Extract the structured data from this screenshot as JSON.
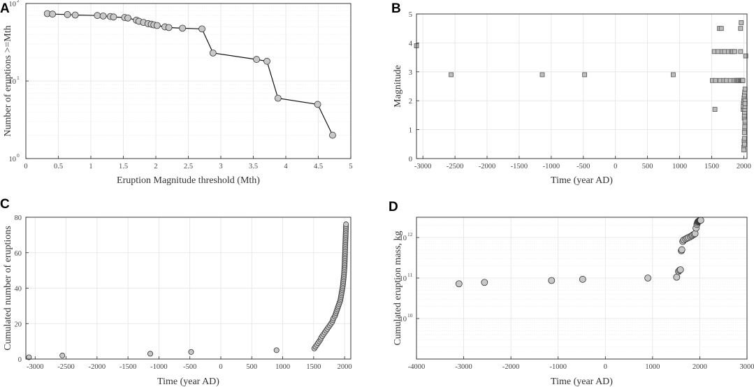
{
  "chart_data": [
    {
      "panel": "A",
      "type": "line",
      "scale_y": "log",
      "title": "",
      "xlabel": "Eruption Magnitude threshold (Mth)",
      "ylabel": "Number of eruptions >=Mth",
      "xlim": [
        0,
        5
      ],
      "ylim_exp": [
        0,
        2
      ],
      "xticks": [
        "0",
        "0.5",
        "1",
        "1.5",
        "2",
        "2.5",
        "3",
        "3.5",
        "4",
        "4.5",
        "5"
      ],
      "yticks": [
        {
          "base": "10",
          "exp": "0"
        },
        {
          "base": "10",
          "exp": "1"
        },
        {
          "base": "10",
          "exp": "2"
        }
      ],
      "grid": true,
      "marker": "circle",
      "x": [
        0.33,
        0.41,
        0.64,
        0.76,
        1.1,
        1.19,
        1.3,
        1.35,
        1.52,
        1.57,
        1.7,
        1.74,
        1.81,
        1.88,
        1.93,
        1.97,
        2.02,
        2.14,
        2.2,
        2.41,
        2.71,
        2.88,
        3.55,
        3.71,
        3.88,
        4.49,
        4.72
      ],
      "y": [
        74,
        73,
        72,
        71,
        70,
        69,
        68,
        67,
        66,
        65,
        61,
        59,
        57,
        55,
        54,
        53,
        52,
        50,
        49,
        48,
        47,
        23,
        19,
        18,
        6,
        5,
        2
      ]
    },
    {
      "panel": "B",
      "type": "scatter",
      "title": "",
      "xlabel": "Time (year AD)",
      "ylabel": "Magnitude",
      "xlim": [
        -3100,
        2050
      ],
      "ylim": [
        0,
        5
      ],
      "xticks": [
        "-3000",
        "-2500",
        "-2000",
        "-1500",
        "-1000",
        "-500",
        "0",
        "500",
        "1000",
        "1500",
        "2000"
      ],
      "yticks": [
        "0",
        "1",
        "2",
        "3",
        "4",
        "5"
      ],
      "grid": true,
      "marker": "square",
      "x": [
        -3100,
        -2560,
        -1140,
        -480,
        900,
        1510,
        1550,
        1540,
        1560,
        1600,
        1630,
        1660,
        1690,
        1700,
        1730,
        1760,
        1790,
        1810,
        1830,
        1850,
        1860,
        1880,
        1900,
        1915,
        1930,
        1945,
        1950,
        1960,
        1965,
        1975,
        1980,
        1985,
        1990,
        1995,
        2000,
        2005,
        2010,
        2015,
        2020,
        2000,
        2005,
        2010,
        2012,
        2015,
        2018,
        1992,
        2008,
        2010,
        2013,
        2016,
        2019,
        2020,
        2000,
        2010,
        2015,
        2018,
        2020,
        1620,
        1650,
        1950,
        1960,
        2030
      ],
      "y": [
        3.9,
        2.9,
        2.9,
        2.9,
        2.9,
        2.7,
        1.7,
        3.7,
        2.7,
        3.7,
        2.7,
        3.7,
        2.7,
        3.7,
        2.7,
        3.7,
        2.7,
        3.7,
        3.7,
        2.7,
        3.7,
        2.7,
        2.7,
        2.7,
        2.7,
        2.7,
        3.7,
        2.7,
        2.7,
        2.7,
        2.7,
        2.7,
        1.7,
        1.9,
        2.0,
        2.1,
        2.2,
        2.3,
        2.4,
        0.4,
        0.6,
        0.7,
        0.5,
        1.0,
        1.2,
        1.8,
        1.4,
        1.5,
        1.6,
        1.7,
        1.8,
        2.0,
        0.3,
        0.9,
        1.1,
        1.3,
        1.9,
        4.5,
        4.5,
        4.5,
        4.7,
        3.55
      ]
    },
    {
      "panel": "C",
      "type": "scatter",
      "title": "",
      "xlabel": "Time (year AD)",
      "ylabel": "Cumulated number of eruptions",
      "xlim": [
        -3150,
        2100
      ],
      "ylim": [
        0,
        80
      ],
      "xticks": [
        "-3000",
        "-2500",
        "-2000",
        "-1500",
        "-1000",
        "-500",
        "0",
        "500",
        "1000",
        "1500",
        "2000"
      ],
      "yticks": [
        "0",
        "20",
        "40",
        "60",
        "80"
      ],
      "grid": true,
      "marker": "circle",
      "x": [
        -3100,
        -2560,
        -1140,
        -480,
        900,
        1510,
        1530,
        1550,
        1570,
        1590,
        1610,
        1620,
        1640,
        1660,
        1680,
        1700,
        1720,
        1740,
        1760,
        1780,
        1800,
        1810,
        1820,
        1840,
        1850,
        1860,
        1870,
        1880,
        1890,
        1900,
        1910,
        1920,
        1930,
        1935,
        1940,
        1945,
        1950,
        1955,
        1960,
        1965,
        1970,
        1973,
        1976,
        1979,
        1982,
        1985,
        1988,
        1990,
        1992,
        1994,
        1996,
        1998,
        2000,
        2001,
        2002,
        2003,
        2004,
        2005,
        2006,
        2007,
        2008,
        2009,
        2010,
        2011,
        2012,
        2013,
        2014,
        2015,
        2016,
        2017,
        2018,
        2019,
        2020,
        2021,
        2022,
        2023
      ],
      "y": [
        1,
        2,
        3,
        4,
        5,
        6,
        7,
        8,
        9,
        10,
        11,
        12,
        13,
        14,
        15,
        16,
        17,
        18,
        19,
        20,
        21,
        22,
        23,
        24,
        25,
        26,
        27,
        28,
        29,
        30,
        31,
        32,
        33,
        34,
        35,
        36,
        37,
        38,
        39,
        40,
        41,
        42,
        43,
        44,
        45,
        46,
        47,
        48,
        49,
        50,
        51,
        52,
        53,
        54,
        55,
        56,
        57,
        58,
        59,
        60,
        61,
        62,
        63,
        64,
        65,
        66,
        67,
        68,
        69,
        70,
        71,
        72,
        73,
        74,
        75,
        76
      ]
    },
    {
      "panel": "D",
      "type": "scatter",
      "scale_y": "log",
      "title": "",
      "xlabel": "Time (year AD)",
      "ylabel": "Cumulated eruption mass, kg",
      "xlim": [
        -4000,
        3000
      ],
      "ylim_exp": [
        9.0,
        12.5
      ],
      "xticks": [
        "-4000",
        "-3000",
        "-2000",
        "-1000",
        "0",
        "1000",
        "2000",
        "3000"
      ],
      "yticks": [
        {
          "base": "10",
          "exp": "10"
        },
        {
          "base": "10",
          "exp": "11"
        },
        {
          "base": "10",
          "exp": "12"
        }
      ],
      "grid": true,
      "marker": "circle",
      "x": [
        -3100,
        -2560,
        -1140,
        -480,
        900,
        1510,
        1550,
        1570,
        1590,
        1610,
        1620,
        1640,
        1660,
        1700,
        1730,
        1760,
        1800,
        1830,
        1850,
        1880,
        1900,
        1920,
        1940,
        1950,
        1960,
        1970,
        1980,
        1990,
        2000,
        2010,
        2020
      ],
      "y": [
        72000000000.0,
        78000000000.0,
        87000000000.0,
        93000000000.0,
        100000000000.0,
        105000000000.0,
        145000000000.0,
        155000000000.0,
        160000000000.0,
        470000000000.0,
        500000000000.0,
        800000000000.0,
        870000000000.0,
        920000000000.0,
        960000000000.0,
        1000000000000.0,
        1050000000000.0,
        1100000000000.0,
        1150000000000.0,
        1200000000000.0,
        1250000000000.0,
        1700000000000.0,
        2100000000000.0,
        2300000000000.0,
        2450000000000.0,
        2500000000000.0,
        2550000000000.0,
        2600000000000.0,
        2620000000000.0,
        2640000000000.0,
        2660000000000.0
      ]
    }
  ]
}
